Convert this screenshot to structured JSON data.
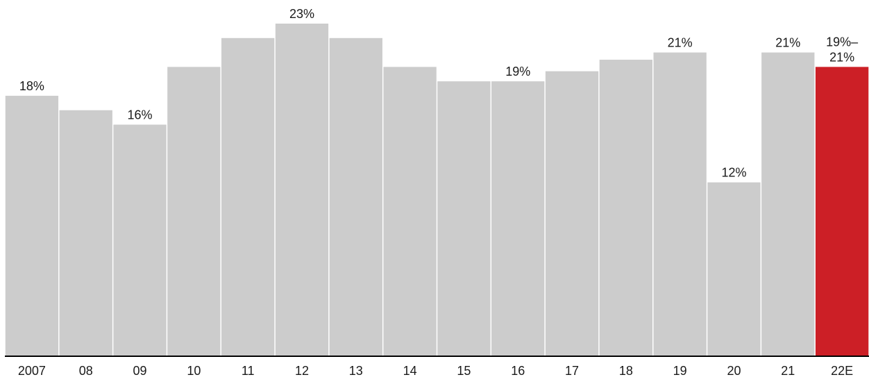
{
  "chart_data": {
    "type": "bar",
    "title": "",
    "xlabel": "",
    "ylabel": "",
    "categories": [
      "2007",
      "08",
      "09",
      "10",
      "11",
      "12",
      "13",
      "14",
      "15",
      "16",
      "17",
      "18",
      "19",
      "20",
      "21",
      "22E"
    ],
    "values": [
      18,
      17,
      16,
      20,
      22,
      23,
      22,
      20,
      19,
      19,
      19.7,
      20.5,
      21,
      12,
      21,
      20
    ],
    "data_labels": [
      "18%",
      "",
      "16%",
      "",
      "",
      "23%",
      "",
      "",
      "",
      "19%",
      "",
      "",
      "21%",
      "12%",
      "21%",
      "19%–21%"
    ],
    "highlight_index": 15,
    "ylim": [
      0,
      23.5
    ],
    "grid": false,
    "legend": "none",
    "colors": {
      "bar": "#cccccc",
      "highlight": "#cc1f26",
      "axis": "#000000",
      "text": "#1a1a1a"
    }
  }
}
